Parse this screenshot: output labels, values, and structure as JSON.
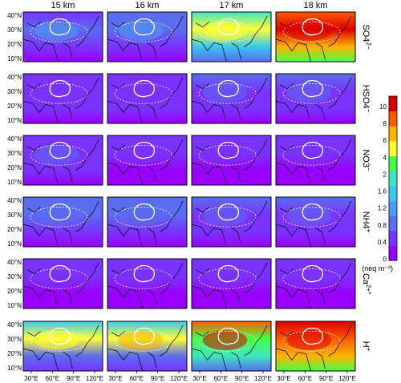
{
  "chart_data": {
    "type": "heatmap",
    "columns": [
      "15 km",
      "16 km",
      "17 km",
      "18 km"
    ],
    "rows": [
      {
        "label": "SO4",
        "charge": "2−"
      },
      {
        "label": "HSO4",
        "charge": "−"
      },
      {
        "label": "NO3",
        "charge": "−"
      },
      {
        "label": "NH4",
        "charge": "+"
      },
      {
        "label": "Ca",
        "charge": "2+*"
      },
      {
        "label": "H",
        "charge": "+"
      }
    ],
    "y_ticks": [
      "40°N",
      "30°N",
      "20°N",
      "10°N"
    ],
    "x_ticks": [
      "30°E",
      "60°E",
      "90°E",
      "120°E"
    ],
    "colorbar": {
      "ticks": [
        "0",
        "0.4",
        "0.8",
        "1.2",
        "1.6",
        "2",
        "4",
        "6",
        "8",
        "10"
      ],
      "unit": "(neq m⁻³)",
      "colors": [
        "#9a00ff",
        "#7a33ff",
        "#5a6cf0",
        "#4a9ef0",
        "#38c8f0",
        "#3ee6c0",
        "#44ff44",
        "#ffff30",
        "#ffb400",
        "#ff5a00",
        "#dd0000"
      ]
    },
    "panel_levels": [
      [
        [
          0.55,
          0.9,
          0.4,
          0.15
        ],
        [
          0.65,
          0.95,
          0.4,
          0.15
        ],
        [
          2.5,
          4.5,
          1.6,
          0.6
        ],
        [
          8.5,
          9.5,
          7.0,
          4.0
        ]
      ],
      [
        [
          0.45,
          0.35,
          0.2,
          0.05
        ],
        [
          0.45,
          0.35,
          0.2,
          0.05
        ],
        [
          0.6,
          0.45,
          0.25,
          0.1
        ],
        [
          0.7,
          0.55,
          0.3,
          0.1
        ]
      ],
      [
        [
          0.5,
          0.35,
          0.2,
          0.05
        ],
        [
          0.4,
          0.3,
          0.15,
          0.03
        ],
        [
          0.3,
          0.25,
          0.12,
          0.02
        ],
        [
          0.25,
          0.2,
          0.1,
          0.02
        ]
      ],
      [
        [
          0.75,
          0.6,
          0.4,
          0.15
        ],
        [
          0.75,
          0.6,
          0.4,
          0.15
        ],
        [
          0.65,
          0.5,
          0.3,
          0.1
        ],
        [
          0.6,
          0.45,
          0.25,
          0.1
        ]
      ],
      [
        [
          0.35,
          0.25,
          0.12,
          0.03
        ],
        [
          0.35,
          0.25,
          0.12,
          0.03
        ],
        [
          0.4,
          0.3,
          0.15,
          0.03
        ],
        [
          0.4,
          0.3,
          0.15,
          0.03
        ]
      ],
      [
        [
          1.5,
          4.5,
          0.7,
          0.2
        ],
        [
          1.6,
          5.0,
          0.7,
          0.2
        ],
        [
          8.0,
          3.5,
          2.0,
          0.6
        ],
        [
          9.5,
          8.0,
          6.0,
          3.5
        ]
      ]
    ]
  }
}
